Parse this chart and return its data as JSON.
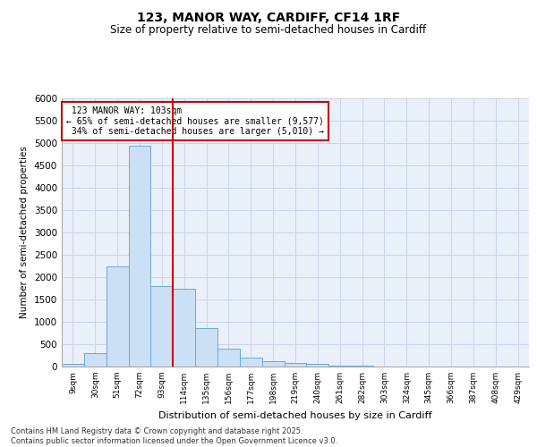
{
  "title": "123, MANOR WAY, CARDIFF, CF14 1RF",
  "subtitle": "Size of property relative to semi-detached houses in Cardiff",
  "xlabel": "Distribution of semi-detached houses by size in Cardiff",
  "ylabel": "Number of semi-detached properties",
  "footer1": "Contains HM Land Registry data © Crown copyright and database right 2025.",
  "footer2": "Contains public sector information licensed under the Open Government Licence v3.0.",
  "property_label": "123 MANOR WAY: 103sqm",
  "pct_smaller": "65% of semi-detached houses are smaller (9,577)",
  "pct_larger": "34% of semi-detached houses are larger (5,010)",
  "bin_labels": [
    "9sqm",
    "30sqm",
    "51sqm",
    "72sqm",
    "93sqm",
    "114sqm",
    "135sqm",
    "156sqm",
    "177sqm",
    "198sqm",
    "219sqm",
    "240sqm",
    "261sqm",
    "282sqm",
    "303sqm",
    "324sqm",
    "345sqm",
    "366sqm",
    "387sqm",
    "408sqm",
    "429sqm"
  ],
  "bar_values": [
    55,
    310,
    2250,
    4950,
    1800,
    1750,
    860,
    400,
    200,
    130,
    80,
    55,
    30,
    15,
    8,
    4,
    2,
    1,
    0,
    0,
    0
  ],
  "bar_color": "#cce0f5",
  "bar_edge_color": "#6aaad4",
  "vline_color": "#cc0000",
  "vline_x_index": 4.476,
  "annotation_box_color": "#cc0000",
  "grid_color": "#c8d4e8",
  "bg_color": "#eaf0fa",
  "ylim": [
    0,
    6000
  ],
  "yticks": [
    0,
    500,
    1000,
    1500,
    2000,
    2500,
    3000,
    3500,
    4000,
    4500,
    5000,
    5500,
    6000
  ]
}
